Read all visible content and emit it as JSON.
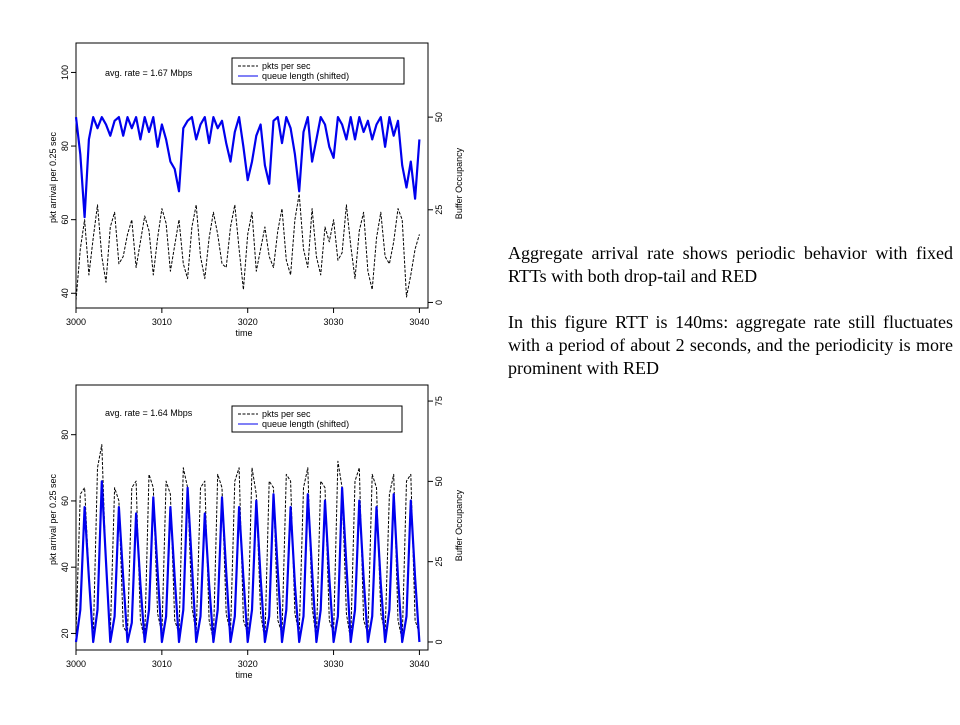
{
  "caption": {
    "paragraph_1": "Aggregate arrival rate shows periodic behavior with fixed RTTs with both drop-tail and RED",
    "paragraph_2": "In this figure RTT is 140ms: aggregate rate still fluctuates with a period of about 2 seconds, and the periodicity is more prominent with RED"
  },
  "colors": {
    "queue_top": "#0000ee",
    "queue_bottom": "#0000ee",
    "pkts": "#000000"
  },
  "chart_data": [
    {
      "type": "line",
      "annotation": "avg. rate = 1.67 Mbps",
      "xlabel": "time",
      "ylabel": "pkt arrival per 0.25 sec",
      "y2label": "Buffer Occupancy",
      "xlim": [
        3000,
        3041
      ],
      "ylim": [
        36,
        108
      ],
      "y2lim": [
        -1.5,
        70
      ],
      "xticks": [
        "3000",
        "3010",
        "3020",
        "3030",
        "3040"
      ],
      "yticks": [
        "40",
        "60",
        "80",
        "100"
      ],
      "y2ticks": [
        "0",
        "25",
        "50"
      ],
      "legend_position": "top-right",
      "series": [
        {
          "name": "pkts per sec",
          "axis": "left",
          "style": "dashed",
          "color": "#000000",
          "x": [
            3000,
            3000.5,
            3001,
            3001.5,
            3002,
            3002.5,
            3003,
            3003.5,
            3004,
            3004.5,
            3005,
            3005.5,
            3006,
            3006.5,
            3007,
            3007.5,
            3008,
            3008.5,
            3009,
            3009.5,
            3010,
            3010.5,
            3011,
            3011.5,
            3012,
            3012.5,
            3013,
            3013.5,
            3014,
            3014.5,
            3015,
            3015.5,
            3016,
            3016.5,
            3017,
            3017.5,
            3018,
            3018.5,
            3019,
            3019.5,
            3020,
            3020.5,
            3021,
            3021.5,
            3022,
            3022.5,
            3023,
            3023.5,
            3024,
            3024.5,
            3025,
            3025.5,
            3026,
            3026.5,
            3027,
            3027.5,
            3028,
            3028.5,
            3029,
            3029.5,
            3030,
            3030.5,
            3031,
            3031.5,
            3032,
            3032.5,
            3033,
            3033.5,
            3034,
            3034.5,
            3035,
            3035.5,
            3036,
            3036.5,
            3037,
            3037.5,
            3038,
            3038.5,
            3039,
            3039.5,
            3040
          ],
          "values": [
            38,
            52,
            60,
            45,
            55,
            64,
            50,
            43,
            58,
            62,
            48,
            50,
            56,
            60,
            47,
            54,
            61,
            57,
            45,
            55,
            63,
            59,
            46,
            53,
            60,
            48,
            44,
            58,
            64,
            50,
            44,
            55,
            62,
            56,
            48,
            47,
            58,
            64,
            52,
            41,
            56,
            62,
            46,
            52,
            58,
            50,
            47,
            57,
            63,
            49,
            45,
            60,
            67,
            52,
            47,
            63,
            50,
            45,
            58,
            54,
            60,
            49,
            51,
            64,
            53,
            44,
            57,
            62,
            46,
            41,
            55,
            62,
            50,
            48,
            54,
            63,
            60,
            39,
            45,
            52,
            56
          ]
        },
        {
          "name": "queue length (shifted)",
          "axis": "right",
          "style": "solid",
          "color": "#0000ee",
          "x": [
            3000,
            3000.5,
            3001,
            3001.5,
            3002,
            3002.5,
            3003,
            3003.5,
            3004,
            3004.5,
            3005,
            3005.5,
            3006,
            3006.5,
            3007,
            3007.5,
            3008,
            3008.5,
            3009,
            3009.5,
            3010,
            3010.5,
            3011,
            3011.5,
            3012,
            3012.5,
            3013,
            3013.5,
            3014,
            3014.5,
            3015,
            3015.5,
            3016,
            3016.5,
            3017,
            3017.5,
            3018,
            3018.5,
            3019,
            3019.5,
            3020,
            3020.5,
            3021,
            3021.5,
            3022,
            3022.5,
            3023,
            3023.5,
            3024,
            3024.5,
            3025,
            3025.5,
            3026,
            3026.5,
            3027,
            3027.5,
            3028,
            3028.5,
            3029,
            3029.5,
            3030,
            3030.5,
            3031,
            3031.5,
            3032,
            3032.5,
            3033,
            3033.5,
            3034,
            3034.5,
            3035,
            3035.5,
            3036,
            3036.5,
            3037,
            3037.5,
            3038,
            3038.5,
            3039,
            3039.5,
            3040
          ],
          "values": [
            50,
            40,
            23,
            44,
            50,
            47,
            50,
            48,
            45,
            49,
            50,
            45,
            50,
            47,
            50,
            44,
            50,
            46,
            50,
            42,
            48,
            44,
            38,
            36,
            30,
            47,
            49,
            50,
            44,
            48,
            50,
            43,
            50,
            47,
            49,
            43,
            38,
            46,
            50,
            42,
            33,
            38,
            45,
            48,
            37,
            32,
            49,
            50,
            43,
            50,
            47,
            40,
            30,
            46,
            50,
            38,
            44,
            50,
            48,
            42,
            39,
            50,
            48,
            44,
            50,
            44,
            50,
            46,
            49,
            44,
            48,
            50,
            42,
            50,
            45,
            49,
            37,
            31,
            38,
            28,
            44
          ]
        }
      ]
    },
    {
      "type": "line",
      "annotation": "avg. rate = 1.64 Mbps",
      "xlabel": "time",
      "ylabel": "pkt arrival per 0.25 sec",
      "y2label": "Buffer Occupancy",
      "xlim": [
        3000,
        3041
      ],
      "ylim": [
        15,
        95
      ],
      "y2lim": [
        -2.5,
        80
      ],
      "xticks": [
        "3000",
        "3010",
        "3020",
        "3030",
        "3040"
      ],
      "yticks": [
        "20",
        "40",
        "60",
        "80"
      ],
      "y2ticks": [
        "0",
        "25",
        "50",
        "75"
      ],
      "legend_position": "top-right",
      "series": [
        {
          "name": "pkts per sec",
          "axis": "left",
          "style": "dashed",
          "color": "#000000",
          "x": [
            3000,
            3000.5,
            3001,
            3001.5,
            3002,
            3002.5,
            3003,
            3003.5,
            3004,
            3004.5,
            3005,
            3005.5,
            3006,
            3006.5,
            3007,
            3007.5,
            3008,
            3008.5,
            3009,
            3009.5,
            3010,
            3010.5,
            3011,
            3011.5,
            3012,
            3012.5,
            3013,
            3013.5,
            3014,
            3014.5,
            3015,
            3015.5,
            3016,
            3016.5,
            3017,
            3017.5,
            3018,
            3018.5,
            3019,
            3019.5,
            3020,
            3020.5,
            3021,
            3021.5,
            3022,
            3022.5,
            3023,
            3023.5,
            3024,
            3024.5,
            3025,
            3025.5,
            3026,
            3026.5,
            3027,
            3027.5,
            3028,
            3028.5,
            3029,
            3029.5,
            3030,
            3030.5,
            3031,
            3031.5,
            3032,
            3032.5,
            3033,
            3033.5,
            3034,
            3034.5,
            3035,
            3035.5,
            3036,
            3036.5,
            3037,
            3037.5,
            3038,
            3038.5,
            3039,
            3039.5,
            3040
          ],
          "values": [
            20,
            62,
            64,
            38,
            18,
            70,
            77,
            40,
            20,
            64,
            60,
            22,
            20,
            64,
            66,
            24,
            18,
            68,
            64,
            26,
            20,
            66,
            62,
            24,
            20,
            70,
            64,
            28,
            20,
            64,
            66,
            24,
            18,
            68,
            64,
            26,
            20,
            66,
            70,
            24,
            20,
            70,
            62,
            26,
            18,
            66,
            64,
            24,
            20,
            68,
            66,
            26,
            20,
            64,
            70,
            28,
            18,
            66,
            64,
            24,
            20,
            72,
            64,
            26,
            18,
            66,
            70,
            24,
            20,
            68,
            64,
            26,
            20,
            62,
            68,
            24,
            18,
            66,
            68,
            24,
            20
          ]
        },
        {
          "name": "queue length (shifted)",
          "axis": "right",
          "style": "solid",
          "color": "#0000ee",
          "x": [
            3000,
            3000.5,
            3001,
            3001.5,
            3002,
            3002.5,
            3003,
            3003.5,
            3004,
            3004.5,
            3005,
            3005.5,
            3006,
            3006.5,
            3007,
            3007.5,
            3008,
            3008.5,
            3009,
            3009.5,
            3010,
            3010.5,
            3011,
            3011.5,
            3012,
            3012.5,
            3013,
            3013.5,
            3014,
            3014.5,
            3015,
            3015.5,
            3016,
            3016.5,
            3017,
            3017.5,
            3018,
            3018.5,
            3019,
            3019.5,
            3020,
            3020.5,
            3021,
            3021.5,
            3022,
            3022.5,
            3023,
            3023.5,
            3024,
            3024.5,
            3025,
            3025.5,
            3026,
            3026.5,
            3027,
            3027.5,
            3028,
            3028.5,
            3029,
            3029.5,
            3030,
            3030.5,
            3031,
            3031.5,
            3032,
            3032.5,
            3033,
            3033.5,
            3034,
            3034.5,
            3035,
            3035.5,
            3036,
            3036.5,
            3037,
            3037.5,
            3038,
            3038.5,
            3039,
            3039.5,
            3040
          ],
          "values": [
            0,
            10,
            42,
            20,
            0,
            10,
            50,
            25,
            0,
            8,
            42,
            20,
            0,
            6,
            40,
            18,
            0,
            10,
            45,
            22,
            0,
            8,
            42,
            20,
            0,
            10,
            48,
            24,
            0,
            8,
            40,
            18,
            0,
            10,
            45,
            22,
            0,
            8,
            42,
            20,
            0,
            10,
            44,
            20,
            0,
            8,
            46,
            22,
            0,
            10,
            42,
            18,
            0,
            8,
            46,
            22,
            0,
            10,
            44,
            20,
            0,
            8,
            48,
            24,
            0,
            10,
            44,
            20,
            0,
            8,
            42,
            18,
            0,
            10,
            46,
            20,
            0,
            8,
            44,
            20,
            0
          ]
        }
      ]
    }
  ]
}
